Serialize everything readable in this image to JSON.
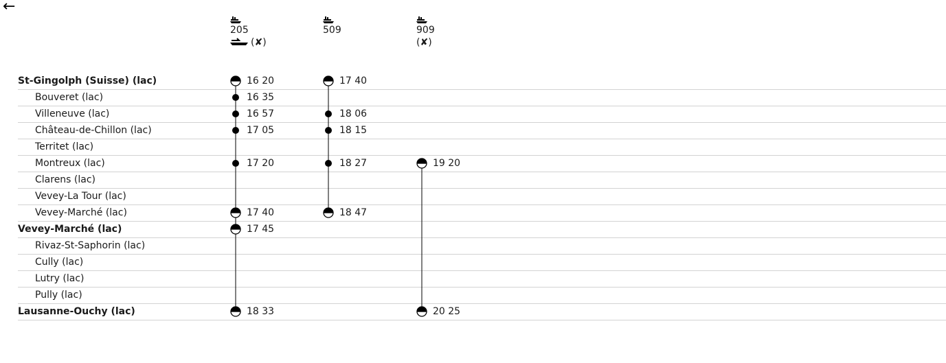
{
  "back_icon": "arrow-left-icon",
  "services": [
    {
      "number": "205",
      "icon": "boat-icon",
      "extras": [
        "boarding-icon",
        "no-restaurant-icon"
      ],
      "extras_label": "(✘)"
    },
    {
      "number": "509",
      "icon": "boat-icon",
      "extras": [],
      "extras_label": ""
    },
    {
      "number": "909",
      "icon": "boat-icon",
      "extras": [
        "no-restaurant-icon"
      ],
      "extras_label": "(✘)"
    }
  ],
  "stops": [
    {
      "name": "St-Gingolph (Suisse) (lac)",
      "bold": true,
      "times": [
        "16 20",
        "17 40",
        ""
      ],
      "markers": [
        "dep",
        "dep",
        ""
      ]
    },
    {
      "name": "Bouveret (lac)",
      "bold": false,
      "times": [
        "16 35",
        "",
        ""
      ],
      "markers": [
        "stop",
        "",
        ""
      ]
    },
    {
      "name": "Villeneuve (lac)",
      "bold": false,
      "times": [
        "16 57",
        "18 06",
        ""
      ],
      "markers": [
        "stop",
        "stop",
        ""
      ]
    },
    {
      "name": "Château-de-Chillon (lac)",
      "bold": false,
      "times": [
        "17 05",
        "18 15",
        ""
      ],
      "markers": [
        "stop",
        "stop",
        ""
      ]
    },
    {
      "name": "Territet (lac)",
      "bold": false,
      "times": [
        "",
        "",
        ""
      ],
      "markers": [
        "pass",
        "pass",
        ""
      ]
    },
    {
      "name": "Montreux (lac)",
      "bold": false,
      "times": [
        "17 20",
        "18 27",
        "19 20"
      ],
      "markers": [
        "stop",
        "stop",
        "dep"
      ]
    },
    {
      "name": "Clarens (lac)",
      "bold": false,
      "times": [
        "",
        "",
        ""
      ],
      "markers": [
        "pass",
        "pass",
        "pass"
      ]
    },
    {
      "name": "Vevey-La Tour (lac)",
      "bold": false,
      "times": [
        "",
        "",
        ""
      ],
      "markers": [
        "pass",
        "pass",
        "pass"
      ]
    },
    {
      "name": "Vevey-Marché (lac)",
      "bold": false,
      "times": [
        "17 40",
        "18 47",
        ""
      ],
      "markers": [
        "arr",
        "arr",
        "pass"
      ]
    },
    {
      "name": "Vevey-Marché (lac)",
      "bold": true,
      "times": [
        "17 45",
        "",
        ""
      ],
      "markers": [
        "dep",
        "",
        "pass"
      ]
    },
    {
      "name": "Rivaz-St-Saphorin (lac)",
      "bold": false,
      "times": [
        "",
        "",
        ""
      ],
      "markers": [
        "pass",
        "",
        "pass"
      ]
    },
    {
      "name": "Cully (lac)",
      "bold": false,
      "times": [
        "",
        "",
        ""
      ],
      "markers": [
        "pass",
        "",
        "pass"
      ]
    },
    {
      "name": "Lutry (lac)",
      "bold": false,
      "times": [
        "",
        "",
        ""
      ],
      "markers": [
        "pass",
        "",
        "pass"
      ]
    },
    {
      "name": "Pully (lac)",
      "bold": false,
      "times": [
        "",
        "",
        ""
      ],
      "markers": [
        "pass",
        "",
        "pass"
      ]
    },
    {
      "name": "Lausanne-Ouchy (lac)",
      "bold": true,
      "times": [
        "18 33",
        "",
        "20 25"
      ],
      "markers": [
        "arr",
        "",
        "arr"
      ]
    }
  ]
}
